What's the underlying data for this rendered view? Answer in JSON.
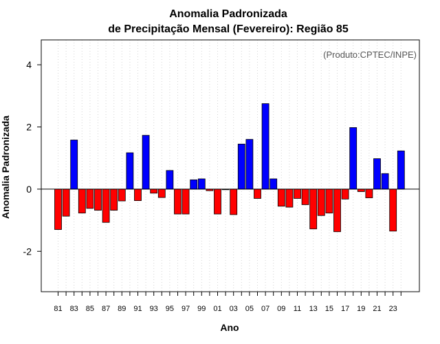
{
  "chart_data": {
    "type": "bar",
    "title_line1": "Anomalia Padronizada",
    "title_line2": "de Precipitação Mensal (Fevereiro): Região 85",
    "annotation": "(Produto:CPTEC/INPE)",
    "xlabel": "Ano",
    "ylabel": "Anomalia Padronizada",
    "ylim": [
      -3.3,
      4.8
    ],
    "yticks": [
      -2,
      0,
      2,
      4
    ],
    "ytick_labels": [
      "-2",
      "0",
      "2",
      "4"
    ],
    "grid": "vertical-dotted",
    "colors": {
      "positive": "#0000ff",
      "negative": "#ff0000",
      "grid": "#d3d3d3",
      "annotation": "#555555"
    },
    "categories": [
      "81",
      "82",
      "83",
      "84",
      "85",
      "86",
      "87",
      "88",
      "89",
      "90",
      "91",
      "92",
      "93",
      "94",
      "95",
      "96",
      "97",
      "98",
      "99",
      "00",
      "01",
      "02",
      "03",
      "04",
      "05",
      "06",
      "07",
      "08",
      "09",
      "10",
      "11",
      "12",
      "13",
      "14",
      "15",
      "16",
      "17",
      "18",
      "19",
      "20",
      "21",
      "22",
      "23",
      "24"
    ],
    "xtick_labels": [
      "81",
      "",
      "83",
      "",
      "85",
      "",
      "87",
      "",
      "89",
      "",
      "91",
      "",
      "93",
      "",
      "95",
      "",
      "97",
      "",
      "99",
      "",
      "01",
      "",
      "03",
      "",
      "05",
      "",
      "07",
      "",
      "09",
      "",
      "11",
      "",
      "13",
      "",
      "15",
      "",
      "17",
      "",
      "19",
      "",
      "21",
      "",
      "23",
      ""
    ],
    "values": [
      -1.3,
      -0.87,
      1.58,
      -0.77,
      -0.62,
      -0.68,
      -1.07,
      -0.68,
      -0.38,
      1.17,
      -0.37,
      1.73,
      -0.13,
      -0.27,
      0.6,
      -0.8,
      -0.8,
      0.3,
      0.33,
      -0.05,
      -0.8,
      -0.02,
      -0.82,
      1.45,
      1.6,
      -0.3,
      2.75,
      0.33,
      -0.55,
      -0.58,
      -0.3,
      -0.5,
      -1.28,
      -0.85,
      -0.77,
      -1.37,
      -0.32,
      1.98,
      -0.08,
      -0.28,
      0.98,
      0.5,
      -1.35,
      1.23
    ]
  }
}
